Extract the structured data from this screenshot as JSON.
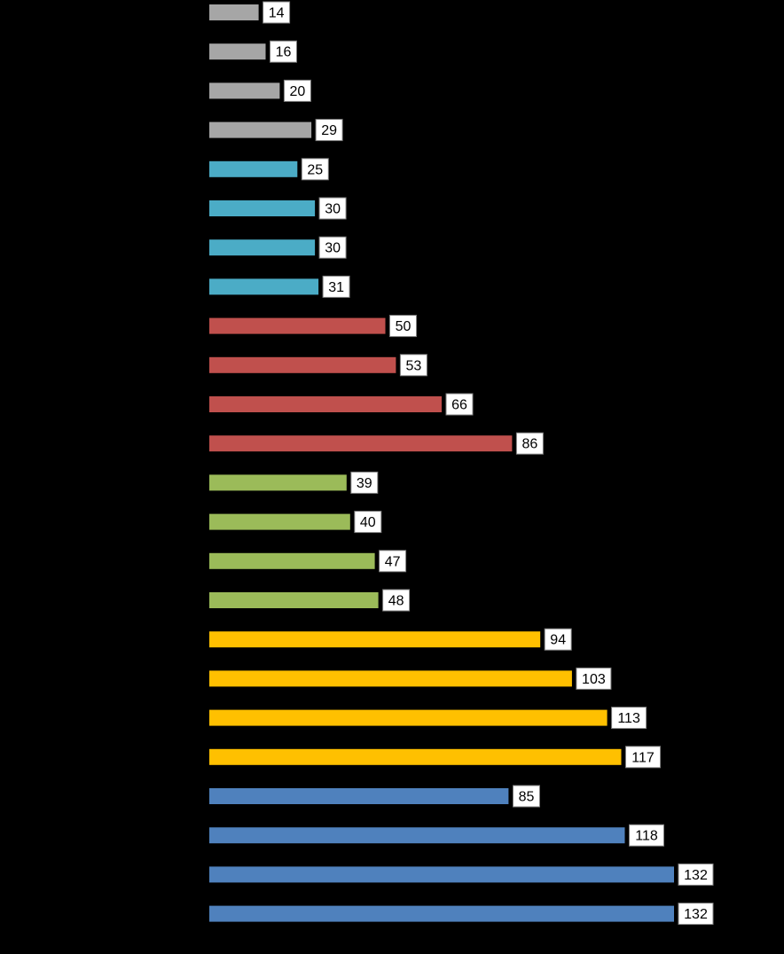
{
  "chart_data": {
    "type": "bar",
    "orientation": "horizontal",
    "title": "",
    "xlabel": "",
    "ylabel": "",
    "grid": false,
    "legend": "none",
    "background": "#000000",
    "xlim": [
      0,
      132
    ],
    "groups": [
      {
        "color": "#a6a6a6",
        "values": [
          14,
          16,
          20,
          29
        ]
      },
      {
        "color": "#4bacc6",
        "values": [
          25,
          30,
          30,
          31
        ]
      },
      {
        "color": "#c0504d",
        "values": [
          50,
          53,
          66,
          86
        ]
      },
      {
        "color": "#9bbb59",
        "values": [
          39,
          40,
          47,
          48
        ]
      },
      {
        "color": "#ffc000",
        "values": [
          94,
          103,
          113,
          117
        ]
      },
      {
        "color": "#4f81bd",
        "values": [
          85,
          118,
          132,
          132
        ]
      }
    ],
    "data_labels": {
      "show": true,
      "box_fill": "#ffffff",
      "box_stroke": "#7f7f7f",
      "text_color": "#000000"
    }
  }
}
